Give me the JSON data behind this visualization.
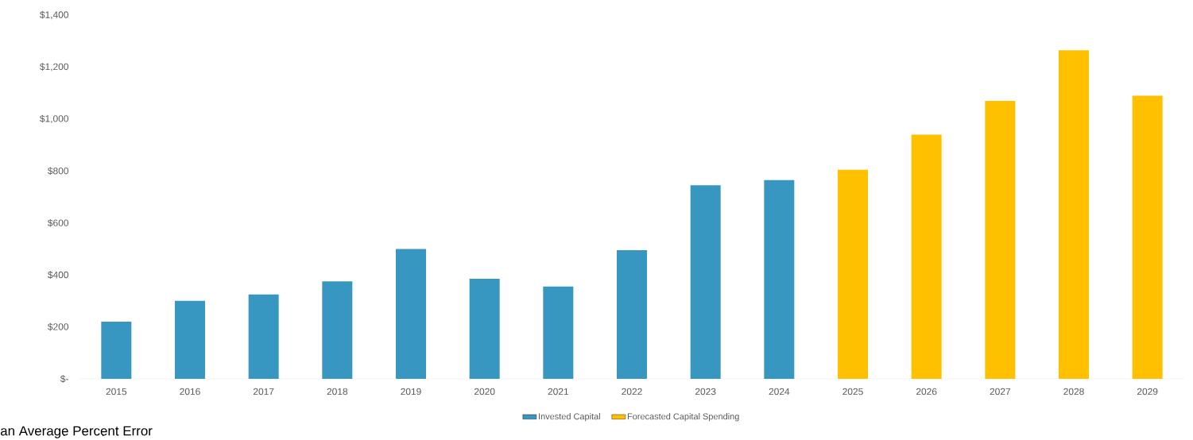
{
  "chart_data": {
    "type": "bar",
    "categories": [
      "2015",
      "2016",
      "2017",
      "2018",
      "2019",
      "2020",
      "2021",
      "2022",
      "2023",
      "2024",
      "2025",
      "2026",
      "2027",
      "2028",
      "2029"
    ],
    "series": [
      {
        "name": "Invested Capital",
        "color": "#3897c0",
        "values": [
          220,
          300,
          325,
          375,
          500,
          385,
          355,
          495,
          745,
          765,
          null,
          null,
          null,
          null,
          null
        ]
      },
      {
        "name": "Forecasted Capital Spending",
        "color": "#ffc000",
        "values": [
          null,
          null,
          null,
          null,
          null,
          null,
          null,
          null,
          null,
          null,
          805,
          940,
          1070,
          1265,
          1090
        ]
      }
    ],
    "ylim": [
      0,
      1400
    ],
    "yticks": [
      {
        "value": 0,
        "label": "$-"
      },
      {
        "value": 200,
        "label": "$200"
      },
      {
        "value": 400,
        "label": "$400"
      },
      {
        "value": 600,
        "label": "$600"
      },
      {
        "value": 800,
        "label": "$800"
      },
      {
        "value": 1000,
        "label": "$1,000"
      },
      {
        "value": 1200,
        "label": "$1,200"
      },
      {
        "value": 1400,
        "label": "$1,400"
      }
    ],
    "legend": "bottom",
    "grid": false,
    "annotations": [
      "an Average Percent Error"
    ]
  }
}
